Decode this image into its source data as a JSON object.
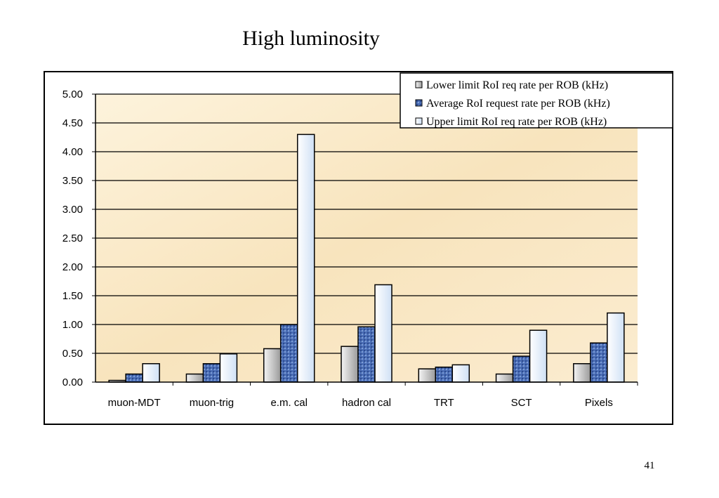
{
  "slide": {
    "title": "High luminosity",
    "page_number": "41"
  },
  "chart_data": {
    "type": "bar",
    "title": "",
    "xlabel": "",
    "ylabel": "",
    "ylim": [
      0,
      5
    ],
    "yticks": [
      "0.00",
      "0.50",
      "1.00",
      "1.50",
      "2.00",
      "2.50",
      "3.00",
      "3.50",
      "4.00",
      "4.50",
      "5.00"
    ],
    "grid": true,
    "legend_position": "top-right",
    "categories": [
      "muon-MDT",
      "muon-trig",
      "e.m. cal",
      "hadron cal",
      "TRT",
      "SCT",
      "Pixels"
    ],
    "series": [
      {
        "name": "Lower limit RoI req rate per ROB (kHz)",
        "values": [
          0.03,
          0.14,
          0.58,
          0.62,
          0.23,
          0.14,
          0.32
        ],
        "color": "#d4d4d4"
      },
      {
        "name": "Average RoI request rate per ROB (kHz)",
        "values": [
          0.14,
          0.32,
          1.0,
          0.96,
          0.26,
          0.45,
          0.68
        ],
        "color": "#4f70b4"
      },
      {
        "name": "Upper limit RoI req rate per ROB (kHz)",
        "values": [
          0.32,
          0.49,
          4.3,
          1.69,
          0.3,
          0.9,
          1.2
        ],
        "color": "#dbe9f8"
      }
    ],
    "plot_background": "#fbeccd"
  }
}
